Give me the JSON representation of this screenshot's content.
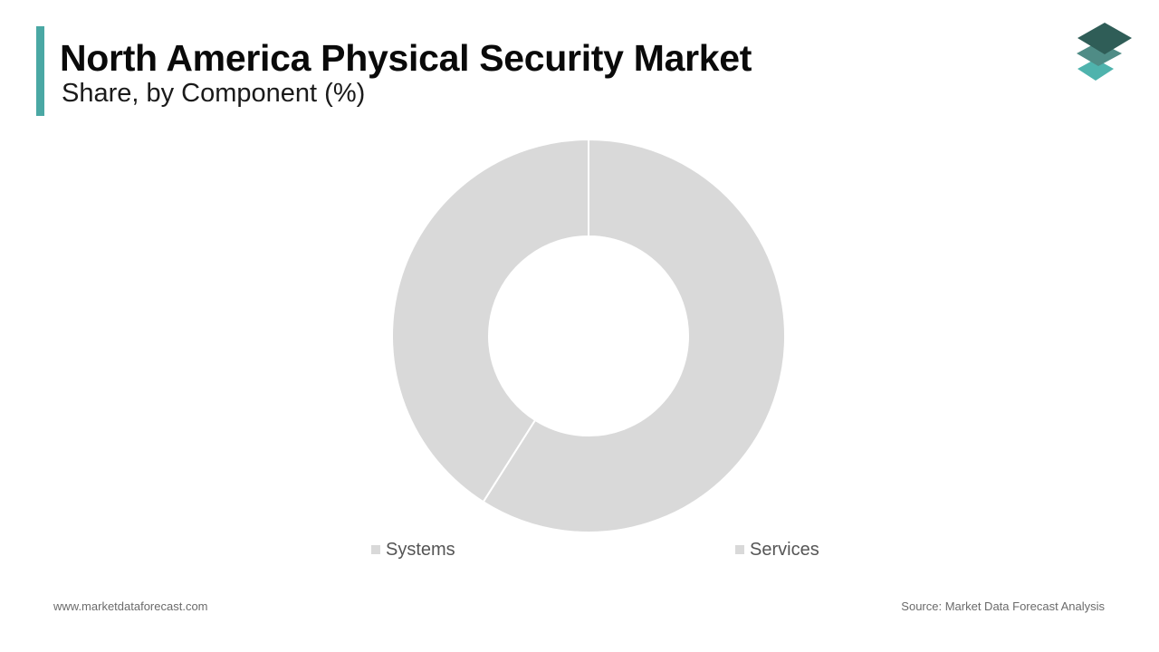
{
  "header": {
    "title": "North America Physical Security Market",
    "subtitle": "Share, by Component (%)",
    "accent_color": "#4aa8a4"
  },
  "logo": {
    "icon": "stacked-layers-logo",
    "colors": [
      "#2f5d57",
      "#4f8c86",
      "#4fb3ad"
    ]
  },
  "chart_data": {
    "type": "pie",
    "style": "donut",
    "title": "",
    "categories": [
      "Systems",
      "Services"
    ],
    "values": [
      41,
      59
    ],
    "unit": "%",
    "colors": [
      "#d9d9d9",
      "#d9d9d9"
    ],
    "legend": {
      "placement": "bottom",
      "entries": [
        "Systems",
        "Services"
      ]
    },
    "data_labels": false
  },
  "footer": {
    "website": "www.marketdataforecast.com",
    "source": "Source: Market Data Forecast Analysis"
  }
}
